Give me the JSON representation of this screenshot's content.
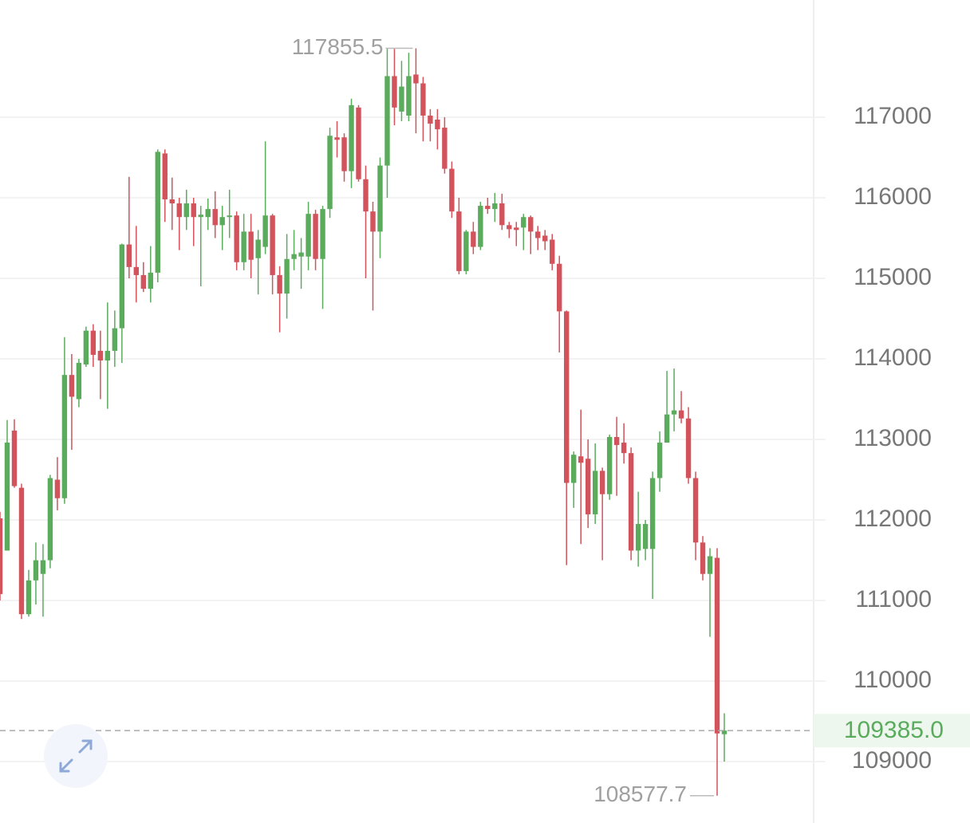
{
  "chart_data": {
    "type": "candlestick",
    "open": [
      112020,
      111620,
      113110,
      112400,
      110830,
      111250,
      111330,
      111500,
      112500,
      112270,
      113800,
      113500,
      113930,
      114350,
      114100,
      113980,
      114100,
      114380,
      115420,
      115140,
      115040,
      114870,
      115070,
      116550,
      115980,
      115930,
      115760,
      115930,
      115760,
      115760,
      115860,
      115660,
      115760,
      115780,
      115200,
      115580,
      115250,
      115390,
      115780,
      115040,
      114810,
      115240,
      115270,
      115270,
      115800,
      115240,
      115860,
      116750,
      116750,
      116330,
      117120,
      116230,
      115830,
      115580,
      116400,
      117510,
      117070,
      117020,
      117530,
      117420,
      117020,
      116970,
      116870,
      116360,
      115830,
      115090,
      115580,
      115390,
      115900,
      115860,
      115930,
      115660,
      115630,
      115630,
      115760,
      115580,
      115530,
      115480,
      115180,
      114590,
      112460,
      112790,
      112760,
      112070,
      112610,
      112320,
      113030,
      112960,
      112830,
      111620,
      111640,
      111640,
      112520,
      112960,
      113310,
      113360,
      113260,
      112520,
      111720,
      111330,
      111530,
      109340
    ],
    "high": [
      112100,
      113240,
      113250,
      112450,
      111380,
      111720,
      111700,
      112560,
      112780,
      114270,
      114060,
      114000,
      114400,
      114430,
      114350,
      114700,
      114600,
      115430,
      116260,
      115650,
      115200,
      115400,
      116600,
      116600,
      116250,
      116000,
      116100,
      116000,
      115900,
      115990,
      116080,
      115900,
      116100,
      115830,
      115800,
      115800,
      115600,
      116700,
      115800,
      115150,
      115550,
      115600,
      115500,
      115950,
      115850,
      115900,
      116870,
      116950,
      116800,
      117230,
      117150,
      116400,
      115950,
      116500,
      117850,
      117850,
      117700,
      117800,
      117855.5,
      117500,
      117100,
      117100,
      117000,
      116450,
      116000,
      115600,
      115700,
      115950,
      116000,
      116060,
      116050,
      115700,
      115700,
      115800,
      115780,
      115650,
      115600,
      115550,
      115280,
      114600,
      112850,
      113370,
      113000,
      112950,
      112650,
      113060,
      113280,
      113200,
      112900,
      112350,
      112000,
      112600,
      113100,
      113850,
      113880,
      113600,
      113400,
      112600,
      111800,
      111650,
      111650,
      109600
    ],
    "low": [
      111000,
      111620,
      112400,
      110770,
      110800,
      110950,
      110800,
      111400,
      112120,
      112200,
      112870,
      113400,
      113900,
      113900,
      113500,
      113380,
      113900,
      113950,
      115000,
      114700,
      114830,
      114700,
      114950,
      115700,
      115600,
      115350,
      115600,
      115400,
      114900,
      115600,
      115500,
      115350,
      115500,
      115100,
      115100,
      115000,
      114800,
      115300,
      114800,
      114330,
      114500,
      115100,
      114870,
      115100,
      115100,
      114620,
      115750,
      116500,
      116200,
      116120,
      116200,
      115000,
      114600,
      115250,
      116000,
      116900,
      116950,
      116950,
      116800,
      116700,
      116700,
      116600,
      116300,
      115750,
      115050,
      115050,
      115300,
      115350,
      115800,
      115700,
      115600,
      115500,
      115400,
      115350,
      115300,
      115350,
      115350,
      115100,
      114080,
      111440,
      112150,
      111700,
      111900,
      111950,
      111500,
      112250,
      112300,
      112700,
      111500,
      111420,
      111500,
      111020,
      112350,
      113000,
      113100,
      113200,
      112450,
      111500,
      111250,
      110550,
      108577.7,
      109000
    ],
    "close": [
      111080,
      112960,
      112420,
      110830,
      111250,
      111500,
      111500,
      112520,
      112270,
      113800,
      113530,
      113950,
      114350,
      114050,
      113980,
      114100,
      114380,
      115420,
      115140,
      115040,
      114870,
      115070,
      116570,
      115980,
      115930,
      115760,
      115930,
      115760,
      115790,
      115860,
      115660,
      115760,
      115780,
      115200,
      115580,
      115230,
      115480,
      115780,
      115040,
      114810,
      115240,
      115300,
      115320,
      115800,
      115240,
      115860,
      116770,
      116720,
      116330,
      117150,
      116230,
      115830,
      115580,
      116400,
      117510,
      117120,
      117380,
      117510,
      117420,
      117020,
      116920,
      116850,
      116360,
      115830,
      115090,
      115580,
      115390,
      115900,
      115860,
      115930,
      115660,
      115610,
      115600,
      115760,
      115580,
      115500,
      115460,
      115180,
      114590,
      112460,
      112810,
      112710,
      112070,
      112610,
      112320,
      113030,
      112930,
      112830,
      111620,
      111950,
      111950,
      112520,
      112960,
      113310,
      113360,
      113260,
      112520,
      111720,
      111330,
      111550,
      109350,
      109385
    ],
    "up_color": "#5bab5d",
    "down_color": "#d2535b",
    "ylim": [
      108238,
      118455
    ],
    "yticks": [
      109000,
      110000,
      111000,
      112000,
      113000,
      114000,
      115000,
      116000,
      117000
    ],
    "grid": true,
    "max_label": 117855.5,
    "min_label": 108577.7,
    "last_price": {
      "value": 109385,
      "label": "109385.0"
    }
  }
}
